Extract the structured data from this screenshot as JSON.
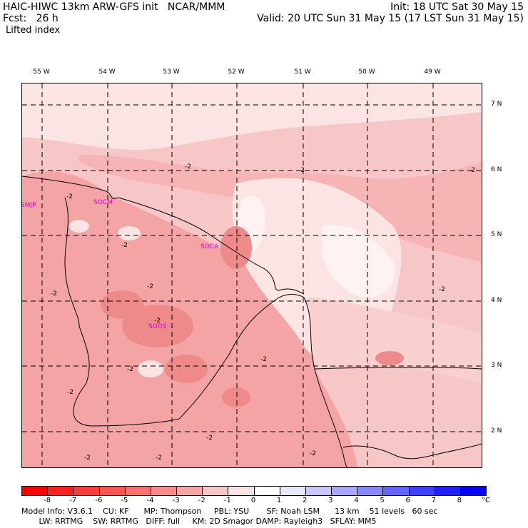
{
  "header": {
    "model_line": "HAIC-HIWC 13km ARW-GFS init   NCAR/MMM",
    "fcst_line": "Fcst:   26 h",
    "field_name": "Lifted index",
    "init_line": "Init: 18 UTC Sat 30 May 15",
    "valid_line": "Valid: 20 UTC Sun 31 May 15 (17 LST Sun 31 May 15)"
  },
  "map": {
    "lon_labels": [
      "55 W",
      "54 W",
      "53 W",
      "52 W",
      "51 W",
      "50 W",
      "49 W"
    ],
    "lat_labels": [
      "7 N",
      "6 N",
      "5 N",
      "4 N",
      "3 N",
      "2 N"
    ],
    "stations": [
      "SMJP",
      "SOCM",
      "SOCA",
      "SOOS"
    ],
    "contour_labels": [
      "-2",
      "-2",
      "-2",
      "-2",
      "-2",
      "-2",
      "-2",
      "-2",
      "-2",
      "-2",
      "-2",
      "-2",
      "-2",
      "-2",
      "-2",
      "-2"
    ]
  },
  "colorbar": {
    "ticks": [
      "-8",
      "-7",
      "-6",
      "-5",
      "-4",
      "-3",
      "-2",
      "-1",
      "0",
      "1",
      "2",
      "3",
      "4",
      "5",
      "6",
      "7",
      "8"
    ],
    "unit": "°C",
    "colors": [
      "#ff0000",
      "#ff2020",
      "#ff3c3c",
      "#ff5555",
      "#ff6e6e",
      "#ff8b8b",
      "#f7a6a6",
      "#f9c6c6",
      "#fde4e4",
      "#ffffff",
      "#e6e6ff",
      "#c8c8ff",
      "#a8a8ff",
      "#8888ff",
      "#6464ff",
      "#4040ff",
      "#2020ff",
      "#0000ff"
    ]
  },
  "footer": {
    "line1": "Model Info: V3.6.1    CU: KF      MP: Thompson     PBL: YSU       SF: Noah LSM      13 km    51 levels   60 sec",
    "line2": "       LW: RRTMG    SW: RRTMG   DIFF: full     KM: 2D Smagor DAMP: Rayleigh3   SFLAY: MM5"
  }
}
